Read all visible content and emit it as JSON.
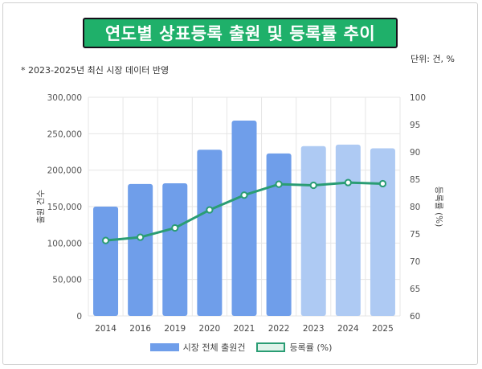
{
  "title": "연도별 상표등록 출원 및 등록률 추이",
  "note": "* 2023-2025년 최신 시장 데이터 반영",
  "unit": "단위: 건, %",
  "colors": {
    "bar_actual": "#6f9eea",
    "bar_forecast": "#aecaf3",
    "line": "#2a9d74",
    "grid": "#e6e6e6"
  },
  "chart_data": {
    "type": "bar",
    "categories": [
      "2014",
      "2016",
      "2019",
      "2020",
      "2021",
      "2022",
      "2023",
      "2024",
      "2025"
    ],
    "series": [
      {
        "name": "시장 전체 출원건",
        "type": "bar",
        "values": [
          150000,
          181000,
          182000,
          228000,
          268000,
          223000,
          233000,
          235000,
          230000
        ]
      },
      {
        "name": "등록률 (%)",
        "type": "line",
        "axis": "right",
        "values": [
          73.8,
          74.4,
          76.1,
          79.4,
          82.1,
          84.1,
          83.9,
          84.4,
          84.2
        ]
      }
    ],
    "forecast_from_index": 6,
    "ylabel": "출원 건수",
    "ylabel_right": "등록률 (%)",
    "ylim": [
      0,
      300000
    ],
    "ylim_right": [
      60,
      100
    ],
    "yticks": [
      "0",
      "50,000",
      "100,000",
      "150,000",
      "200,000",
      "250,000",
      "300,000"
    ],
    "yticks_right": [
      "60",
      "65",
      "70",
      "75",
      "80",
      "85",
      "90",
      "95",
      "100"
    ],
    "grid": true,
    "legend": "bottom"
  }
}
